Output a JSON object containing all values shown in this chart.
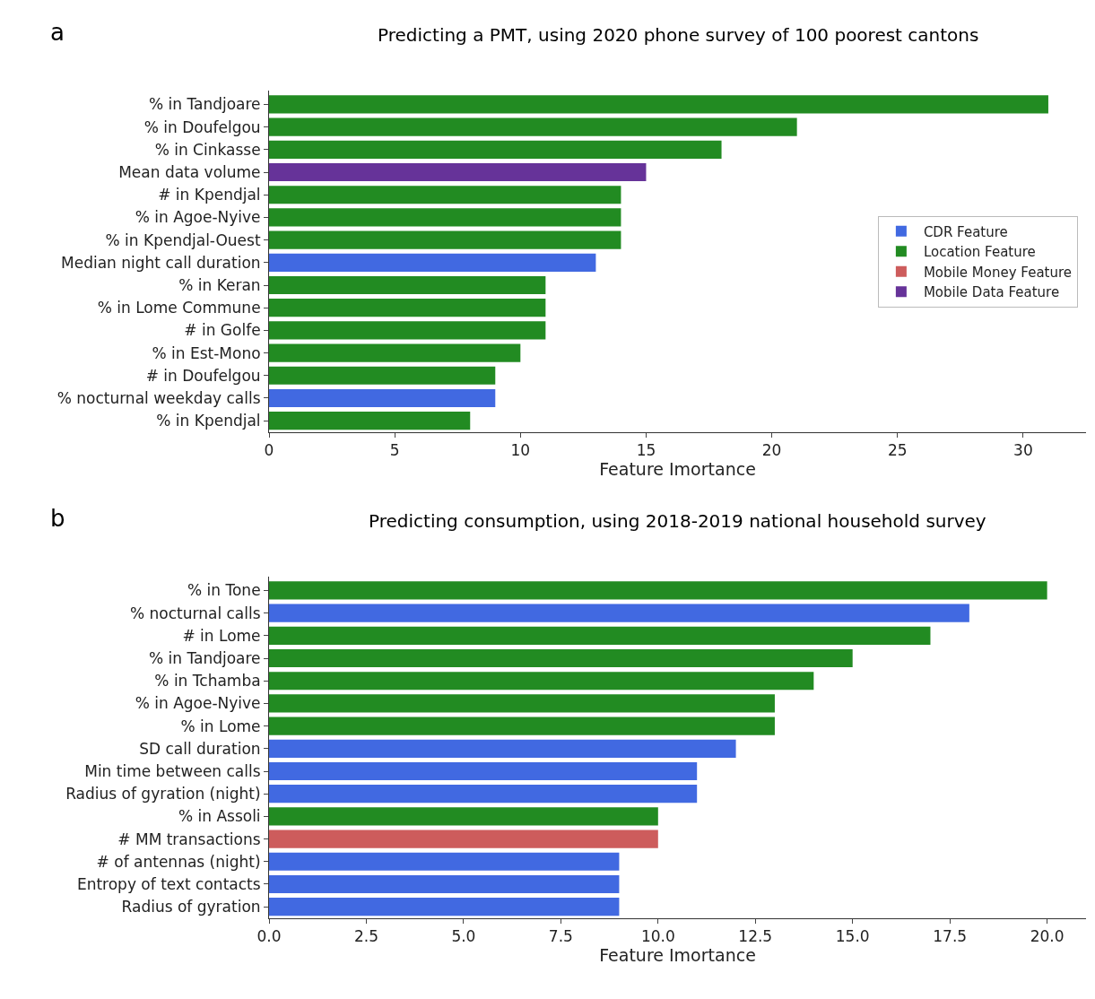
{
  "chart_data": [
    {
      "type": "bar",
      "orientation": "horizontal",
      "title": "Predicting a PMT, using 2020 phone survey of 100 poorest cantons",
      "annotations": [
        "a"
      ],
      "xlabel": "Feature Imortance",
      "categories": [
        "% in Tandjoare",
        "% in Doufelgou",
        "% in Cinkasse",
        "Mean data volume",
        "# in Kpendjal",
        "% in Agoe-Nyive",
        "% in Kpendjal-Ouest",
        "Median night call duration",
        "% in Keran",
        "% in Lome Commune",
        "# in Golfe",
        "% in Est-Mono",
        "# in Doufelgou",
        "% nocturnal weekday calls",
        "% in Kpendjal"
      ],
      "series": [
        {
          "name": "CDR Feature",
          "color": "#4169e1",
          "values": [
            null,
            null,
            null,
            null,
            null,
            null,
            null,
            13,
            null,
            null,
            null,
            null,
            null,
            9,
            null
          ]
        },
        {
          "name": "Location Feature",
          "color": "#228b22",
          "values": [
            31,
            21,
            18,
            null,
            14,
            14,
            14,
            null,
            11,
            11,
            11,
            10,
            9,
            null,
            8
          ]
        },
        {
          "name": "Mobile Money Feature",
          "color": "#cd5c5c",
          "values": [
            null,
            null,
            null,
            null,
            null,
            null,
            null,
            null,
            null,
            null,
            null,
            null,
            null,
            null,
            null
          ]
        },
        {
          "name": "Mobile Data Feature",
          "color": "#663399",
          "values": [
            null,
            null,
            null,
            15,
            null,
            null,
            null,
            null,
            null,
            null,
            null,
            null,
            null,
            null,
            null
          ]
        }
      ],
      "xlim": [
        0,
        32.5
      ],
      "xticks": [
        0,
        5,
        10,
        15,
        20,
        25,
        30
      ],
      "legend": "right"
    },
    {
      "type": "bar",
      "orientation": "horizontal",
      "title": "Predicting consumption, using 2018-2019 national household survey",
      "annotations": [
        "b"
      ],
      "xlabel": "Feature Imortance",
      "categories": [
        "% in Tone",
        "% nocturnal calls",
        "# in Lome",
        "% in Tandjoare",
        "% in Tchamba",
        "% in Agoe-Nyive",
        "% in Lome",
        "SD call duration",
        "Min time between calls",
        "Radius of gyration (night)",
        "% in Assoli",
        "# MM transactions",
        "# of antennas (night)",
        "Entropy of text contacts",
        "Radius of gyration"
      ],
      "series": [
        {
          "color": "#4169e1",
          "values": [
            null,
            18,
            null,
            null,
            null,
            null,
            null,
            12,
            11,
            11,
            null,
            null,
            9,
            9,
            9
          ]
        },
        {
          "color": "#228b22",
          "values": [
            20,
            null,
            17,
            15,
            14,
            13,
            13,
            null,
            null,
            null,
            10,
            null,
            null,
            null,
            null
          ]
        },
        {
          "color": "#cd5c5c",
          "values": [
            null,
            null,
            null,
            null,
            null,
            null,
            null,
            null,
            null,
            null,
            null,
            10,
            null,
            null,
            null
          ]
        }
      ],
      "xlim": [
        0,
        21
      ],
      "xticks": [
        {
          "value": 0,
          "label": "0.0"
        },
        {
          "value": 2.5,
          "label": "2.5"
        },
        {
          "value": 5,
          "label": "5.0"
        },
        {
          "value": 7.5,
          "label": "7.5"
        },
        {
          "value": 10,
          "label": "10.0"
        },
        {
          "value": 12.5,
          "label": "12.5"
        },
        {
          "value": 15,
          "label": "15.0"
        },
        {
          "value": 17.5,
          "label": "17.5"
        },
        {
          "value": 20,
          "label": "20.0"
        }
      ],
      "legend": false
    }
  ]
}
